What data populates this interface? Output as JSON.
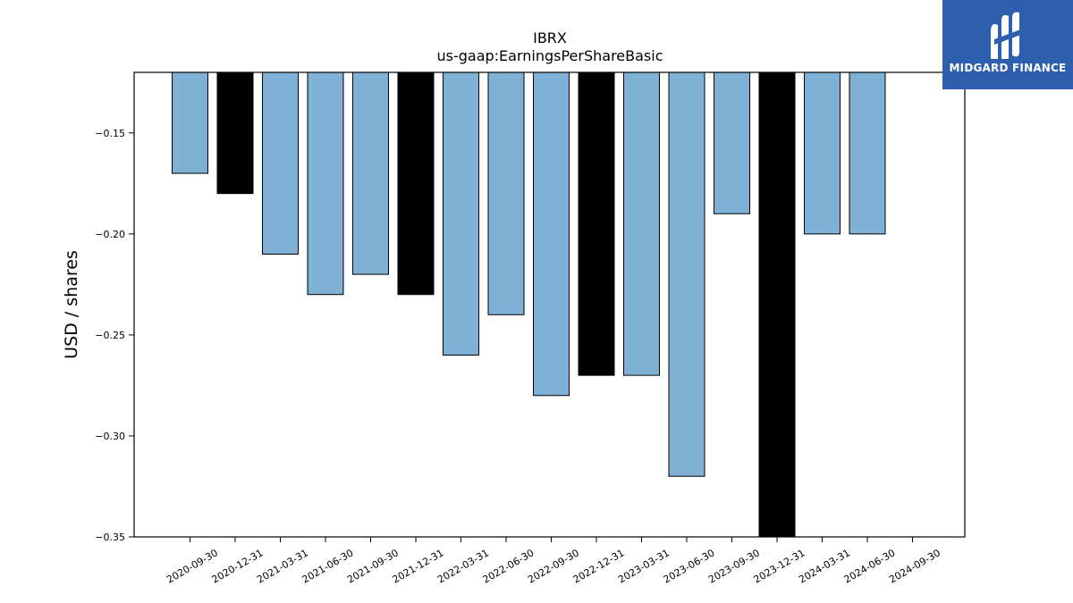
{
  "chart_data": {
    "type": "bar",
    "title": "IBRX",
    "subtitle": "us-gaap:EarningsPerShareBasic",
    "xlabel": "",
    "ylabel": "USD / shares",
    "categories": [
      "2020-09-30",
      "2020-12-31",
      "2021-03-31",
      "2021-06-30",
      "2021-09-30",
      "2021-12-31",
      "2022-03-31",
      "2022-06-30",
      "2022-09-30",
      "2022-12-31",
      "2023-03-31",
      "2023-06-30",
      "2023-09-30",
      "2023-12-31",
      "2024-03-31",
      "2024-06-30",
      "2024-09-30"
    ],
    "values": [
      -0.17,
      -0.18,
      -0.21,
      -0.23,
      -0.22,
      -0.23,
      -0.26,
      -0.24,
      -0.28,
      -0.27,
      -0.27,
      -0.32,
      -0.19,
      -0.35,
      -0.2,
      -0.2,
      -0.12
    ],
    "bar_colors": [
      "#7fb0d5",
      "#000000",
      "#7fb0d5",
      "#7fb0d5",
      "#7fb0d5",
      "#000000",
      "#7fb0d5",
      "#7fb0d5",
      "#7fb0d5",
      "#000000",
      "#7fb0d5",
      "#7fb0d5",
      "#7fb0d5",
      "#000000",
      "#7fb0d5",
      "#7fb0d5",
      "#7fb0d5"
    ],
    "ylim": [
      -0.35,
      -0.12
    ],
    "yticks": [
      -0.15,
      -0.2,
      -0.25,
      -0.3,
      -0.35
    ],
    "ytick_labels": [
      "−0.15",
      "−0.20",
      "−0.25",
      "−0.30",
      "−0.35"
    ],
    "grid": false,
    "legend": "none"
  },
  "logo": {
    "text": "MIDGARD FINANCE",
    "background": "#2d5fae"
  }
}
